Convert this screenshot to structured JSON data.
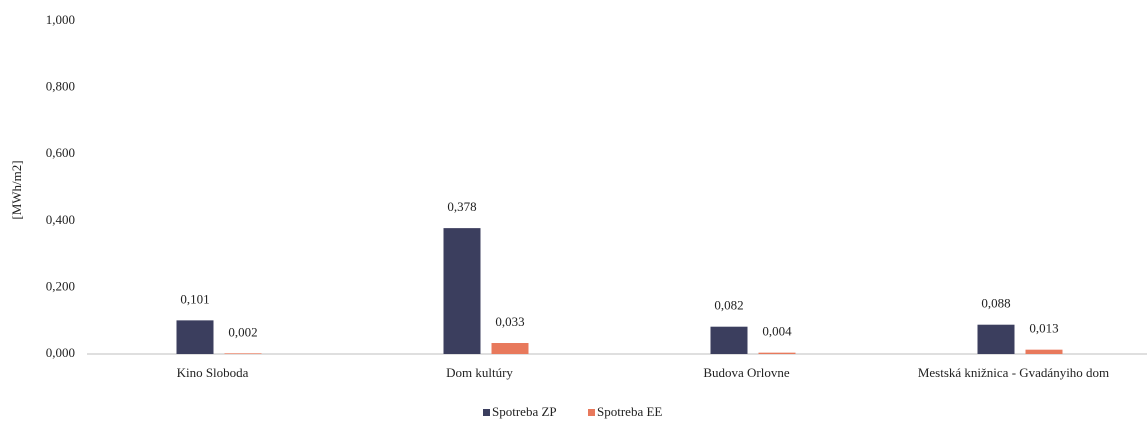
{
  "chart_data": {
    "type": "bar",
    "y_label": "[MWh/m2]",
    "categories": [
      "Kino Sloboda",
      "Dom kultúry",
      "Budova Orlovne",
      "Mestská knižnica - Gvadányiho dom"
    ],
    "series": [
      {
        "name": "Spotreba ZP",
        "color": "#3b3e5e",
        "values": [
          0.101,
          0.378,
          0.082,
          0.088
        ],
        "value_labels": [
          "0,101",
          "0,378",
          "0,082",
          "0,088"
        ]
      },
      {
        "name": "Spotreba EE",
        "color": "#e8795c",
        "values": [
          0.002,
          0.033,
          0.004,
          0.013
        ],
        "value_labels": [
          "0,002",
          "0,033",
          "0,004",
          "0,013"
        ]
      }
    ],
    "ylim": [
      0,
      1
    ],
    "yticks": [
      {
        "value": 0,
        "label": "0,000"
      },
      {
        "value": 0.2,
        "label": "0,200"
      },
      {
        "value": 0.4,
        "label": "0,400"
      },
      {
        "value": 0.6,
        "label": "0,600"
      },
      {
        "value": 0.8,
        "label": "0,800"
      },
      {
        "value": 1,
        "label": "1,000"
      }
    ],
    "grid": false,
    "legend": "bottom"
  }
}
